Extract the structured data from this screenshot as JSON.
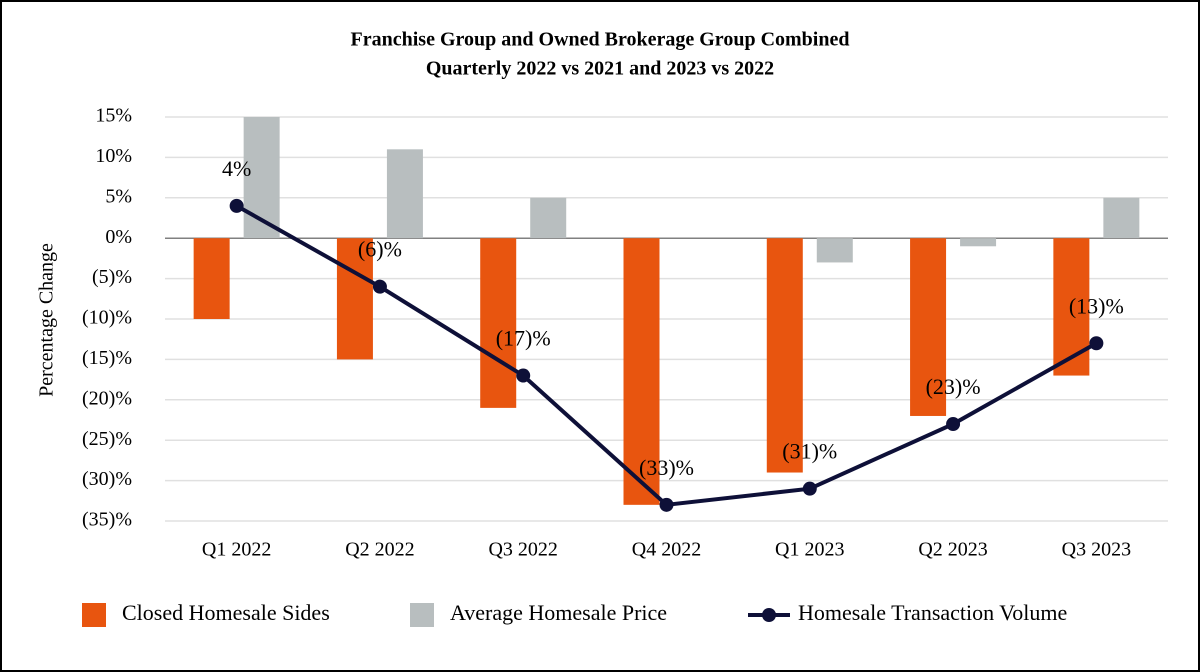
{
  "chart_data": {
    "type": "bar",
    "title": "Franchise Group and Owned Brokerage Group Combined",
    "subtitle": "Quarterly 2022 vs 2021 and 2023 vs 2022",
    "y_label": "Percentage Change",
    "categories": [
      "Q1 2022",
      "Q2 2022",
      "Q3 2022",
      "Q4 2022",
      "Q1 2023",
      "Q2 2023",
      "Q3 2023"
    ],
    "series": [
      {
        "name": "Closed Homesale Sides",
        "type": "bar",
        "color": "#e8550f",
        "values": [
          -10,
          -15,
          -21,
          -33,
          -29,
          -22,
          -17
        ]
      },
      {
        "name": "Average Homesale Price",
        "type": "bar",
        "color": "#b8bebf",
        "values": [
          15,
          11,
          5,
          0,
          -3,
          -1,
          5
        ]
      },
      {
        "name": "Homesale Transaction Volume",
        "type": "line",
        "color": "#0e1038",
        "values": [
          4,
          -6,
          -17,
          -33,
          -31,
          -23,
          -13
        ],
        "value_labels": [
          "4%",
          "(6)%",
          "(17)%",
          "(33)%",
          "(31)%",
          "(23)%",
          "(13)%"
        ]
      }
    ],
    "ylim": [
      -35,
      15
    ],
    "yticks": [
      {
        "value": 15,
        "label": "15%"
      },
      {
        "value": 10,
        "label": "10%"
      },
      {
        "value": 5,
        "label": "5%"
      },
      {
        "value": 0,
        "label": "0%"
      },
      {
        "value": -5,
        "label": "(5)%"
      },
      {
        "value": -10,
        "label": "(10)%"
      },
      {
        "value": -15,
        "label": "(15)%"
      },
      {
        "value": -20,
        "label": "(20)%"
      },
      {
        "value": -25,
        "label": "(25)%"
      },
      {
        "value": -30,
        "label": "(30)%"
      },
      {
        "value": -35,
        "label": "(35)%"
      }
    ],
    "grid": true,
    "legend": "bottom"
  }
}
